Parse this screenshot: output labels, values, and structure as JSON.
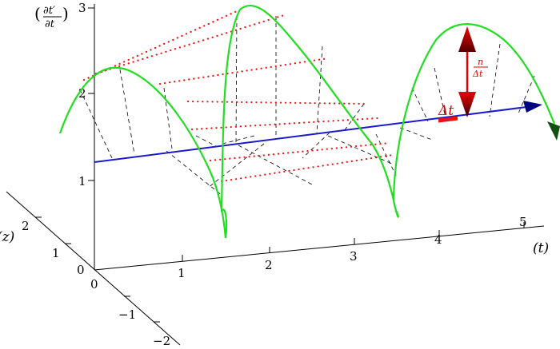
{
  "axes": {
    "vertical_label_num": "∂t′",
    "vertical_label_den": "∂t",
    "time_label": "(t)",
    "depth_label": "(z)",
    "vertical_ticks": [
      "1",
      "2",
      "3"
    ],
    "time_ticks": [
      "1",
      "2",
      "3",
      "4",
      "5"
    ],
    "depth_ticks": [
      "−2",
      "−1",
      "0",
      "1",
      "2"
    ],
    "origin_time_tick": "0"
  },
  "annotations": {
    "delta_t": "Δt",
    "fraction_num": "n",
    "fraction_den": "Δt"
  },
  "colors": {
    "curve": "#22dd22",
    "time_vector": "#1a1acc",
    "dotted": "#ee1111",
    "dashed": "#000000",
    "arrow_red": "#e00000",
    "arrow_dark": "#550000"
  }
}
